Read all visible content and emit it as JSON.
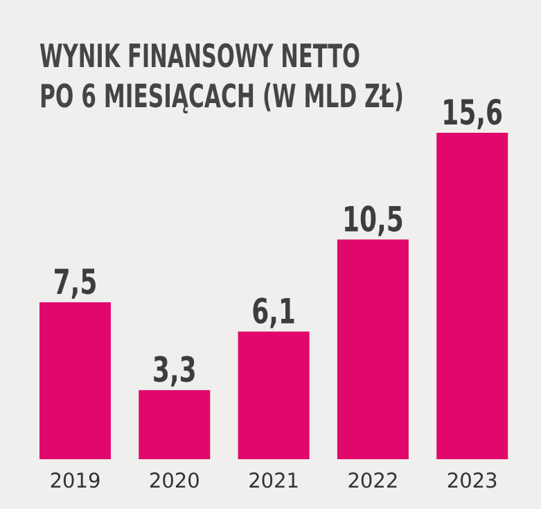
{
  "chart_data": {
    "type": "bar",
    "title": [
      "WYNIK FINANSOWY NETTO",
      "PO 6 MIESIĄCACH (W MLD ZŁ)"
    ],
    "categories": [
      "2019",
      "2020",
      "2021",
      "2022",
      "2023"
    ],
    "values": [
      7.5,
      3.3,
      6.1,
      10.5,
      15.6
    ],
    "value_labels": [
      "7,5",
      "3,3",
      "6,1",
      "10,5",
      "15,6"
    ],
    "color": "#e0086b"
  }
}
